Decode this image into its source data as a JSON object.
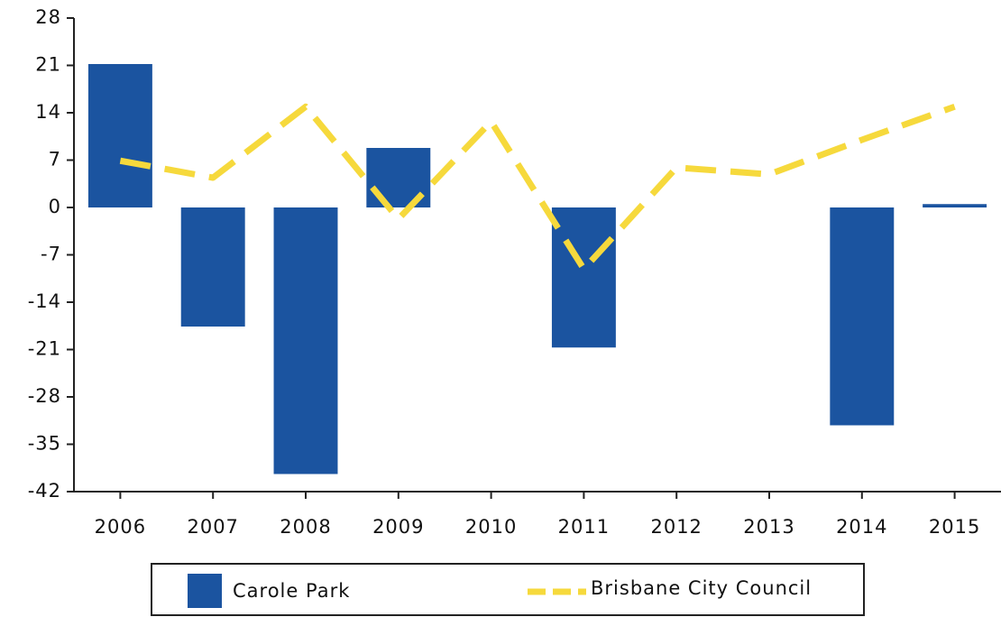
{
  "chart_data": {
    "type": "bar-line",
    "categories": [
      "2006",
      "2007",
      "2008",
      "2009",
      "2010",
      "2011",
      "2012",
      "2013",
      "2014",
      "2015"
    ],
    "series": [
      {
        "name": "Carole Park",
        "type": "bar",
        "color": "#1b54a0",
        "values": [
          21.2,
          -17.6,
          -39.4,
          8.8,
          null,
          -20.7,
          null,
          null,
          -32.2,
          0.5
        ]
      },
      {
        "name": "Brisbane City Council",
        "type": "line",
        "dashed": true,
        "color": "#f6d93c",
        "values": [
          6.9,
          4.4,
          14.9,
          -1.7,
          12.7,
          -9.1,
          5.9,
          4.9,
          10,
          14.9
        ]
      }
    ],
    "ylim": [
      -42,
      28
    ],
    "yticks": [
      -42,
      -35,
      -28,
      -21,
      -14,
      -7,
      0,
      7,
      14,
      21,
      28
    ],
    "grid": false,
    "legend": "bottom"
  }
}
